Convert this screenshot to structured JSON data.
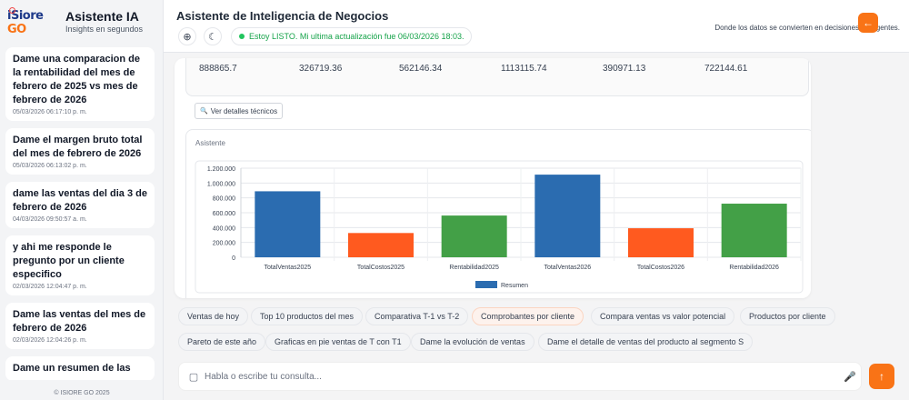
{
  "brand": {
    "title": "Asistente IA",
    "subtitle": "Insights en segundos",
    "logo_text": "iSiore GO"
  },
  "history": [
    {
      "question": "Dame una comparacion de la rentabilidad del mes de febrero de 2025 vs mes de febrero de 2026",
      "date": "05/03/2026 06:17:10 p. m."
    },
    {
      "question": "Dame el margen bruto total del mes de febrero de 2026",
      "date": "05/03/2026 06:13:02 p. m."
    },
    {
      "question": "dame las ventas del dia 3 de febrero de 2026",
      "date": "04/03/2026 09:50:57 a. m."
    },
    {
      "question": "y ahi me responde le pregunto por un cliente especifico",
      "date": "02/03/2026 12:04:47 p. m."
    },
    {
      "question": "Dame las ventas del mes de febrero de 2026",
      "date": "02/03/2026 12:04:26 p. m."
    },
    {
      "question": "Dame un resumen de las",
      "date": ""
    }
  ],
  "copyright": "© ISIORE GO 2025",
  "header": {
    "title": "Asistente de Inteligencia de Negocios",
    "status": "Estoy LISTO. Mi ultima actualización fue 06/03/2026 18:03.",
    "tagline": "Donde los datos se convierten en decisiones inteligentes.",
    "add_icon": "⊕",
    "theme_icon": "☾",
    "back_icon": "←"
  },
  "table_row": [
    "888865.7",
    "326719.36",
    "562146.34",
    "1113115.74",
    "390971.13",
    "722144.61"
  ],
  "details_button": "Ver detalles técnicos",
  "assistant_label": "Asistente",
  "chart_data": {
    "type": "bar",
    "categories": [
      "TotalVentas2025",
      "TotalCostos2025",
      "Rentabilidad2025",
      "TotalVentas2026",
      "TotalCostos2026",
      "Rentabilidad2026"
    ],
    "values": [
      888865.7,
      326719.36,
      562146.34,
      1113115.74,
      390971.13,
      722144.61
    ],
    "colors": [
      "#2b6cb0",
      "#ff5a1f",
      "#43a047",
      "#2b6cb0",
      "#ff5a1f",
      "#43a047"
    ],
    "ylim": [
      0,
      1200000
    ],
    "yticks": [
      "0",
      "200.000",
      "400.000",
      "600.000",
      "800.000",
      "1.000.000",
      "1.200.000"
    ],
    "legend": "Resumen",
    "legend_color": "#2b6cb0",
    "grid": true,
    "legend_position": "bottom"
  },
  "suggestions": [
    "Ventas de hoy",
    "Top 10 productos del mes",
    "Comparativa T-1 vs T-2",
    "Comprobantes por cliente",
    "Compara ventas vs valor potencial",
    "Productos por cliente",
    "Pareto de este año",
    "Graficas en pie ventas de T con T1",
    "Dame la evolución de ventas",
    "Dame el detalle de ventas del producto al segmento S"
  ],
  "input": {
    "placeholder": "Habla o escribe tu consulta..."
  },
  "icons": {
    "chat": "chat-bubble-icon",
    "mic": "microphone-icon",
    "send": "arrow-up-icon",
    "magnifier": "🔍"
  }
}
